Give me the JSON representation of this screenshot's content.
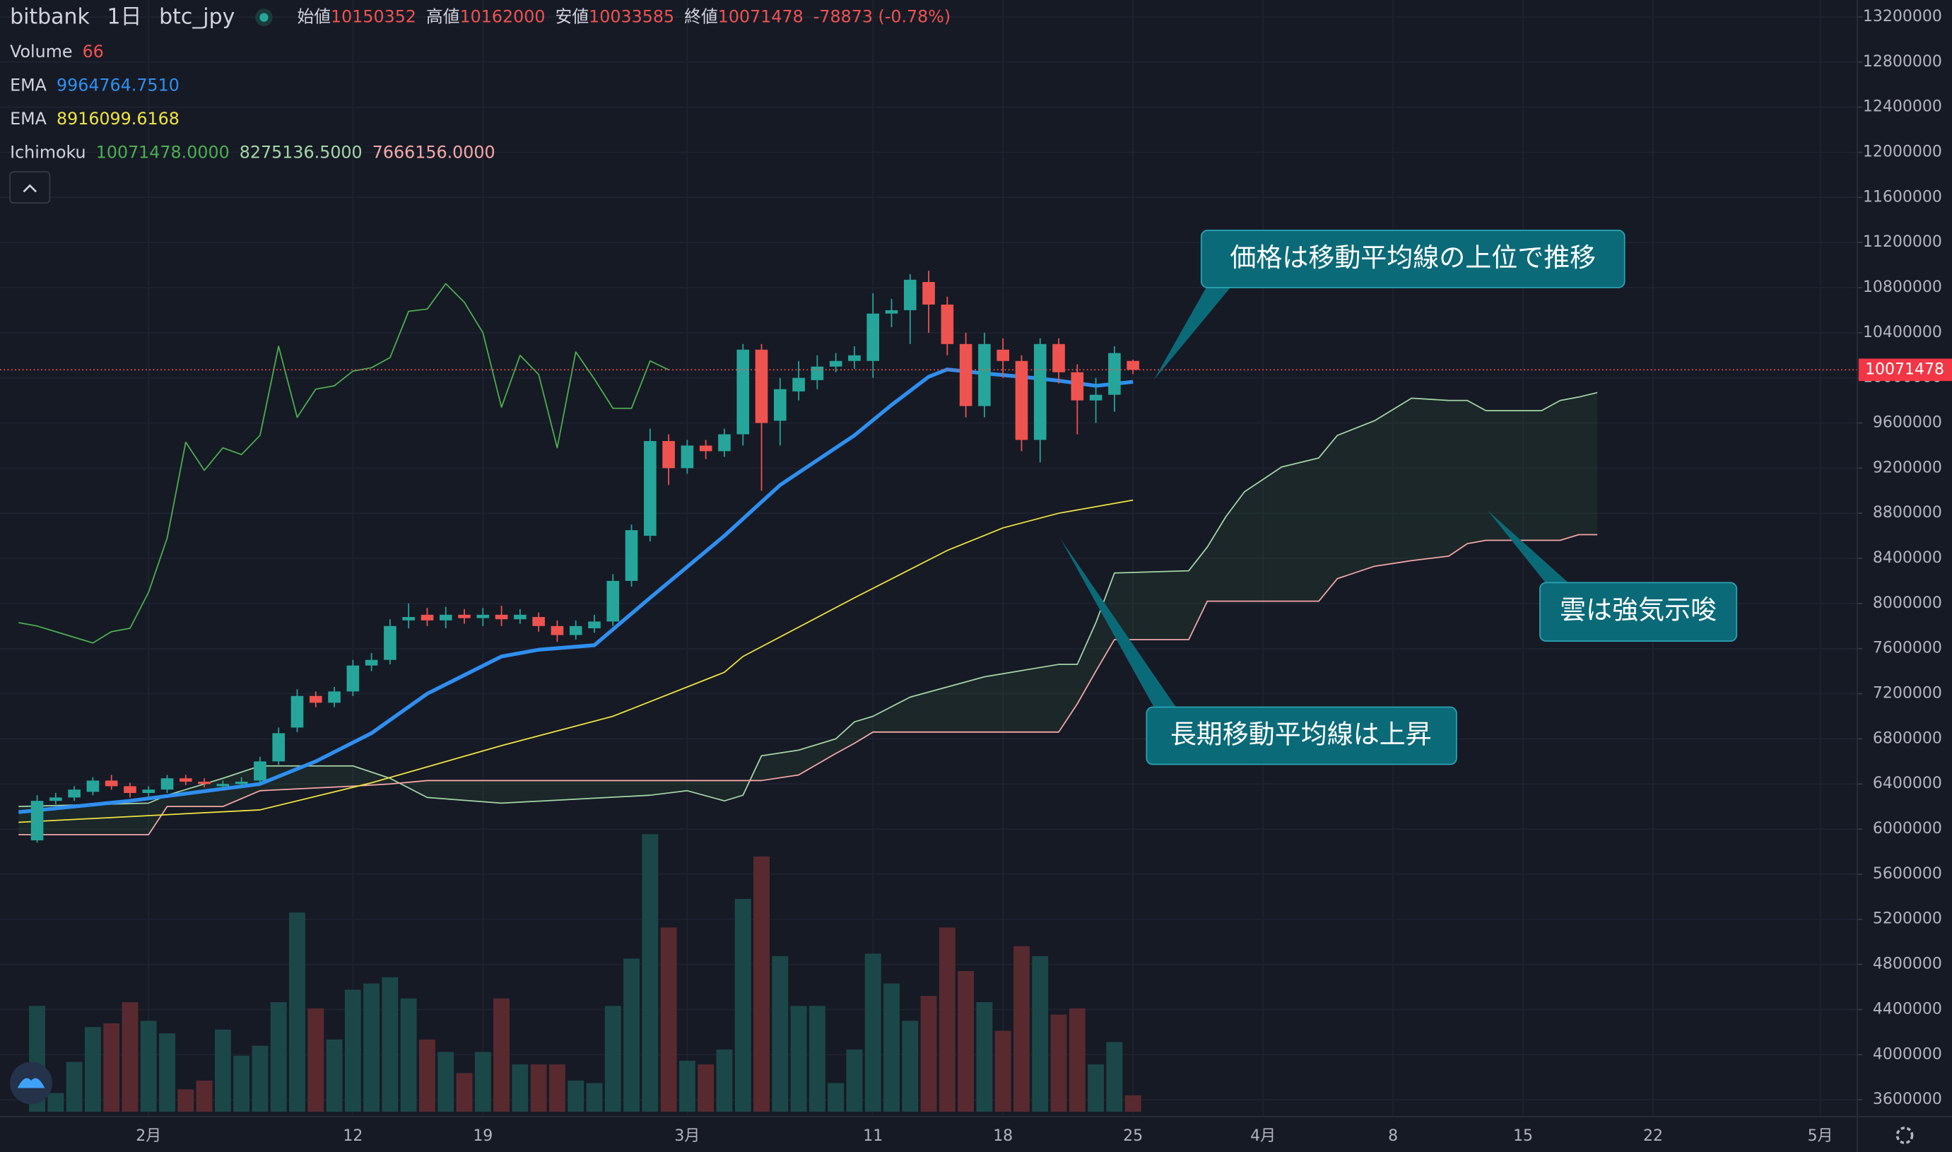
{
  "header": {
    "exchange": "bitbank",
    "interval": "1日",
    "symbol": "btc_jpy",
    "open_label": "始値",
    "high_label": "高値",
    "low_label": "安値",
    "close_label": "終値",
    "change": "-78873 (-0.78%)"
  },
  "chart_data": {
    "type": "candlestick",
    "x": [
      "01-26",
      "01-27",
      "01-28",
      "01-29",
      "01-30",
      "01-31",
      "02-01",
      "02-02",
      "02-03",
      "02-04",
      "02-05",
      "02-06",
      "02-07",
      "02-08",
      "02-09",
      "02-10",
      "02-11",
      "02-12",
      "02-13",
      "02-14",
      "02-15",
      "02-16",
      "02-17",
      "02-18",
      "02-19",
      "02-20",
      "02-21",
      "02-22",
      "02-23",
      "02-24",
      "02-25",
      "02-26",
      "02-27",
      "02-28",
      "02-29",
      "03-01",
      "03-02",
      "03-03",
      "03-04",
      "03-05",
      "03-06",
      "03-07",
      "03-08",
      "03-09",
      "03-10",
      "03-11",
      "03-12",
      "03-13",
      "03-14",
      "03-15",
      "03-16",
      "03-17",
      "03-18",
      "03-19",
      "03-20",
      "03-21",
      "03-22",
      "03-23",
      "03-24",
      "03-25"
    ],
    "open": [
      5900000,
      6250000,
      6280000,
      6330000,
      6430000,
      6380000,
      6320000,
      6350000,
      6450000,
      6420000,
      6380000,
      6400000,
      6430000,
      6600000,
      6900000,
      7180000,
      7120000,
      7220000,
      7450000,
      7500000,
      7850000,
      7900000,
      7850000,
      7900000,
      7870000,
      7900000,
      7860000,
      7880000,
      7800000,
      7720000,
      7780000,
      7840000,
      8200000,
      8600000,
      9440000,
      9200000,
      9400000,
      9350000,
      9500000,
      10250000,
      9620000,
      9880000,
      9980000,
      10100000,
      10150000,
      10150000,
      10570000,
      10600000,
      10850000,
      10650000,
      10300000,
      9750000,
      10250000,
      10150000,
      9450000,
      10300000,
      10050000,
      9800000,
      9850000,
      10150352
    ],
    "high": [
      6300000,
      6320000,
      6380000,
      6460000,
      6480000,
      6410000,
      6380000,
      6480000,
      6480000,
      6450000,
      6430000,
      6460000,
      6640000,
      6900000,
      7240000,
      7220000,
      7260000,
      7500000,
      7560000,
      7860000,
      8000000,
      7960000,
      7970000,
      7950000,
      7960000,
      7980000,
      7950000,
      7920000,
      7850000,
      7850000,
      7900000,
      8260000,
      8700000,
      9550000,
      9500000,
      9450000,
      9450000,
      9550000,
      10300000,
      10300000,
      10000000,
      10150000,
      10200000,
      10220000,
      10280000,
      10750000,
      10700000,
      10920000,
      10950000,
      10720000,
      10400000,
      10400000,
      10350000,
      10200000,
      10350000,
      10350000,
      10120000,
      10000000,
      10280000,
      10162000
    ],
    "low": [
      5880000,
      6220000,
      6250000,
      6300000,
      6350000,
      6280000,
      6290000,
      6320000,
      6390000,
      6370000,
      6350000,
      6370000,
      6400000,
      6570000,
      6860000,
      7080000,
      7080000,
      7180000,
      7400000,
      7460000,
      7780000,
      7800000,
      7780000,
      7820000,
      7800000,
      7800000,
      7820000,
      7750000,
      7660000,
      7680000,
      7740000,
      7800000,
      8150000,
      8550000,
      9050000,
      9150000,
      9280000,
      9300000,
      9400000,
      9000000,
      9400000,
      9800000,
      9900000,
      10050000,
      10080000,
      10000000,
      10450000,
      10300000,
      10400000,
      10200000,
      9650000,
      9650000,
      10000000,
      9350000,
      9250000,
      9950000,
      9500000,
      9600000,
      9700000,
      10033585
    ],
    "close": [
      6250000,
      6280000,
      6350000,
      6430000,
      6380000,
      6320000,
      6350000,
      6450000,
      6420000,
      6400000,
      6400000,
      6420000,
      6600000,
      6850000,
      7180000,
      7120000,
      7220000,
      7450000,
      7500000,
      7800000,
      7880000,
      7850000,
      7900000,
      7870000,
      7900000,
      7860000,
      7900000,
      7800000,
      7720000,
      7800000,
      7840000,
      8200000,
      8650000,
      9440000,
      9200000,
      9400000,
      9350000,
      9500000,
      10250000,
      9600000,
      9900000,
      10000000,
      10100000,
      10150000,
      10200000,
      10570000,
      10600000,
      10870000,
      10650000,
      10300000,
      9750000,
      10300000,
      10150000,
      9450000,
      10300000,
      10050000,
      9800000,
      9850000,
      10220000,
      10071478
    ],
    "volume_name": "Volume",
    "volume": [
      425,
      75,
      200,
      340,
      355,
      440,
      365,
      315,
      90,
      125,
      330,
      225,
      265,
      440,
      800,
      415,
      290,
      490,
      515,
      540,
      455,
      290,
      240,
      155,
      240,
      455,
      190,
      190,
      190,
      125,
      115,
      425,
      615,
      1115,
      740,
      205,
      190,
      250,
      855,
      1025,
      625,
      425,
      425,
      115,
      250,
      635,
      515,
      365,
      465,
      740,
      565,
      440,
      325,
      665,
      625,
      390,
      415,
      190,
      280,
      66
    ],
    "vlim": [
      0,
      1200
    ],
    "up_color": "#26a69a",
    "down_color": "#ef5350",
    "volume_up_color": "#1c4748",
    "volume_down_color": "#582a30",
    "lines": [
      {
        "name": "EMA",
        "color": "#2f8ff0",
        "width": 3,
        "value_label": "9964764.7510",
        "x": [
          "01-25",
          "01-31",
          "02-07",
          "02-10",
          "02-13",
          "02-16",
          "02-20",
          "02-22",
          "02-25",
          "02-28",
          "03-03",
          "03-06",
          "03-10",
          "03-12",
          "03-14",
          "03-15",
          "03-17",
          "03-19",
          "03-21",
          "03-23",
          "03-25"
        ],
        "values": [
          6150000,
          6250000,
          6400000,
          6600000,
          6850000,
          7200000,
          7530000,
          7590000,
          7630000,
          8050000,
          8600000,
          9050000,
          9490000,
          9760000,
          10010000,
          10075000,
          10040000,
          10010000,
          9975000,
          9930000,
          9964764.751
        ]
      },
      {
        "name": "EMA",
        "color": "#f0e442",
        "width": 1,
        "value_label": "8916099.6168",
        "x": [
          "01-25",
          "02-07",
          "02-13",
          "02-20",
          "02-26",
          "03-03",
          "03-04",
          "03-10",
          "03-15",
          "03-18",
          "03-21",
          "03-25"
        ],
        "values": [
          6060000,
          6170000,
          6410000,
          6740000,
          7000000,
          7390000,
          7530000,
          8050000,
          8470000,
          8670000,
          8800000,
          8916099.6168
        ]
      }
    ],
    "cloud": {
      "name": "Ichimoku",
      "value_labels": [
        "10071478.0000",
        "8275136.5000",
        "7666156.0000"
      ],
      "lagging_color": "#4caf50",
      "span_a_color": "#a5d6a7",
      "span_b_color": "#f4a8a8",
      "fill": "rgba(76,175,80,0.09)",
      "lagging_x": [
        "01-25",
        "01-26",
        "01-27",
        "01-28",
        "01-29",
        "01-30",
        "01-31",
        "02-01",
        "02-02",
        "02-03",
        "02-04",
        "02-05",
        "02-06",
        "02-07",
        "02-08",
        "02-09",
        "02-10",
        "02-11",
        "02-12",
        "02-13",
        "02-14",
        "02-15",
        "02-16",
        "02-17",
        "02-18",
        "02-19",
        "02-20",
        "02-21",
        "02-22",
        "02-23",
        "02-24",
        "02-25",
        "02-26",
        "02-27",
        "02-28",
        "02-29"
      ],
      "lagging": [
        7830000,
        7800000,
        7750000,
        7700000,
        7650000,
        7750000,
        7780000,
        8100000,
        8580000,
        9430000,
        9180000,
        9380000,
        9320000,
        9490000,
        10280000,
        9650000,
        9900000,
        9930000,
        10060000,
        10090000,
        10180000,
        10590000,
        10610000,
        10835000,
        10670000,
        10400000,
        9740000,
        10200000,
        10030000,
        9380000,
        10230000,
        9990000,
        9730000,
        9730000,
        10150000,
        10071478
      ],
      "x": [
        "01-25",
        "02-01",
        "02-02",
        "02-05",
        "02-07",
        "02-12",
        "02-14",
        "02-16",
        "02-20",
        "02-28",
        "03-01",
        "03-03",
        "03-04",
        "03-05",
        "03-07",
        "03-09",
        "03-10",
        "03-11",
        "03-13",
        "03-17",
        "03-21",
        "03-22",
        "03-23",
        "03-24",
        "03-28",
        "03-29",
        "03-30",
        "03-31",
        "04-02",
        "04-04",
        "04-05",
        "04-07",
        "04-09",
        "04-11",
        "04-12",
        "04-13",
        "04-16",
        "04-17",
        "04-18",
        "04-19"
      ],
      "span_a": [
        6200000,
        6230000,
        6300000,
        6450000,
        6560000,
        6560000,
        6450000,
        6280000,
        6230000,
        6300000,
        6340000,
        6250000,
        6300000,
        6650000,
        6700000,
        6800000,
        6950000,
        7000000,
        7170000,
        7350000,
        7460000,
        7460000,
        7830000,
        8270000,
        8290000,
        8500000,
        8770000,
        8990000,
        9210000,
        9290000,
        9490000,
        9620000,
        9820000,
        9800000,
        9800000,
        9710000,
        9710000,
        9800000,
        9830000,
        9870000
      ],
      "span_b": [
        5950000,
        5950000,
        6200000,
        6200000,
        6340000,
        6380000,
        6400000,
        6430000,
        6430000,
        6430000,
        6430000,
        6430000,
        6430000,
        6430000,
        6480000,
        6670000,
        6760000,
        6860000,
        6860000,
        6860000,
        6860000,
        7110000,
        7400000,
        7680000,
        7680000,
        8020000,
        8020000,
        8020000,
        8020000,
        8020000,
        8220000,
        8330000,
        8380000,
        8420000,
        8530000,
        8560000,
        8560000,
        8560000,
        8610000,
        8610000
      ]
    },
    "ylim": [
      3450000,
      13350000
    ],
    "yticks": [
      3600000,
      4000000,
      4400000,
      4800000,
      5200000,
      5600000,
      6000000,
      6400000,
      6800000,
      7200000,
      7600000,
      8000000,
      8400000,
      8800000,
      9200000,
      9600000,
      10000000,
      10400000,
      10800000,
      11200000,
      11600000,
      12000000,
      12400000,
      12800000,
      13200000
    ],
    "xlim": [
      "01-24",
      "05-03"
    ],
    "xticks": [
      {
        "value": "02-01",
        "label": "2月"
      },
      {
        "value": "02-12",
        "label": "12"
      },
      {
        "value": "02-19",
        "label": "19"
      },
      {
        "value": "03-01",
        "label": "3月"
      },
      {
        "value": "03-11",
        "label": "11"
      },
      {
        "value": "03-18",
        "label": "18"
      },
      {
        "value": "03-25",
        "label": "25"
      },
      {
        "value": "04-01",
        "label": "4月"
      },
      {
        "value": "04-08",
        "label": "8"
      },
      {
        "value": "04-15",
        "label": "15"
      },
      {
        "value": "04-22",
        "label": "22"
      },
      {
        "value": "05-01",
        "label": "5月"
      }
    ],
    "grid": true,
    "annotations": [
      {
        "text": "価格は移動平均線の上位で推移"
      },
      {
        "text": "雲は強気示唆"
      },
      {
        "text": "長期移動平均線は上昇"
      }
    ]
  }
}
